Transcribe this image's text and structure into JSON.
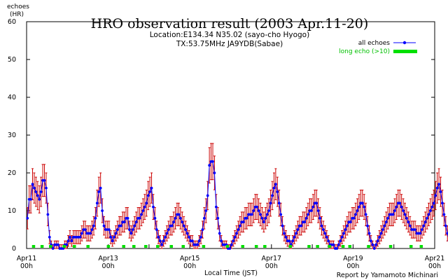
{
  "chart_data": {
    "type": "line",
    "title": "HRO observation result (2003 Apr.11-20)",
    "subtitle_1": "Location:E134.34 N35.02 (sayo-cho Hyogo)",
    "subtitle_2": "TX:53.75MHz JA9YDB(Sabae)",
    "ylabel": "echoes",
    "ylabel_unit": "(HR)",
    "xlabel": "Local Time (JST)",
    "credit": "Report by Yamamoto Michinari",
    "ylim": [
      0,
      60
    ],
    "yticks": [
      0,
      10,
      20,
      30,
      40,
      50,
      60
    ],
    "xlim": [
      0,
      240
    ],
    "xticks": [
      {
        "hour": 0,
        "date": "Apr11",
        "time": "00h"
      },
      {
        "hour": 48,
        "date": "Apr13",
        "time": "00h"
      },
      {
        "hour": 96,
        "date": "Apr15",
        "time": "00h"
      },
      {
        "hour": 144,
        "date": "Apr17",
        "time": "00h"
      },
      {
        "hour": 192,
        "date": "Apr19",
        "time": "00h"
      },
      {
        "hour": 240,
        "date": "Apr21",
        "time": "00h"
      }
    ],
    "colors": {
      "all_echoes": "#0000ff",
      "error_bar": "#cc0000",
      "long_echo": "#00e000"
    },
    "series": [
      {
        "name": "all echoes",
        "key": "all_echoes"
      },
      {
        "name": "long echo (>10)",
        "key": "long_echo"
      }
    ],
    "all_echoes": [
      8,
      13,
      13,
      17,
      16,
      15,
      14,
      13,
      15,
      18,
      18,
      16,
      9,
      3,
      1,
      0,
      1,
      1,
      1,
      0,
      0,
      0,
      1,
      1,
      2,
      3,
      2,
      3,
      3,
      3,
      3,
      3,
      4,
      5,
      5,
      4,
      4,
      4,
      5,
      6,
      8,
      12,
      15,
      16,
      10,
      6,
      5,
      5,
      5,
      3,
      2,
      3,
      4,
      5,
      6,
      6,
      7,
      7,
      8,
      8,
      5,
      4,
      5,
      6,
      7,
      8,
      8,
      9,
      10,
      11,
      12,
      14,
      15,
      16,
      11,
      8,
      5,
      3,
      2,
      1,
      2,
      3,
      4,
      5,
      6,
      6,
      7,
      8,
      9,
      9,
      8,
      7,
      6,
      5,
      4,
      3,
      2,
      2,
      1,
      1,
      1,
      2,
      3,
      5,
      8,
      10,
      14,
      22,
      23,
      23,
      20,
      11,
      8,
      4,
      2,
      1,
      1,
      1,
      0,
      0,
      1,
      2,
      3,
      4,
      5,
      6,
      7,
      7,
      8,
      8,
      9,
      9,
      9,
      10,
      11,
      11,
      10,
      9,
      8,
      7,
      8,
      9,
      10,
      12,
      14,
      16,
      17,
      15,
      12,
      9,
      6,
      4,
      3,
      2,
      2,
      1,
      2,
      3,
      4,
      5,
      6,
      6,
      7,
      7,
      8,
      9,
      10,
      10,
      11,
      12,
      12,
      10,
      8,
      6,
      5,
      4,
      3,
      2,
      1,
      1,
      1,
      0,
      0,
      1,
      2,
      3,
      4,
      5,
      6,
      7,
      7,
      8,
      8,
      9,
      10,
      11,
      12,
      12,
      11,
      9,
      6,
      4,
      2,
      1,
      0,
      1,
      2,
      3,
      4,
      5,
      6,
      7,
      8,
      9,
      9,
      9,
      10,
      11,
      12,
      12,
      11,
      10,
      9,
      8,
      7,
      6,
      5,
      5,
      5,
      4,
      4,
      4,
      5,
      6,
      7,
      8,
      9,
      10,
      11,
      12,
      14,
      16,
      17,
      15,
      12,
      9,
      6,
      4,
      2,
      1,
      0,
      0,
      0,
      0,
      0,
      1,
      2,
      3,
      4,
      5,
      6,
      7,
      8,
      9,
      9,
      10,
      10
    ],
    "long_echo_hours": [
      4,
      9,
      14,
      22,
      28,
      36,
      48,
      57,
      63,
      70,
      77,
      85,
      92,
      104,
      118,
      127,
      135,
      140,
      155,
      166,
      171,
      178,
      186,
      190,
      201,
      214,
      226,
      232
    ]
  }
}
